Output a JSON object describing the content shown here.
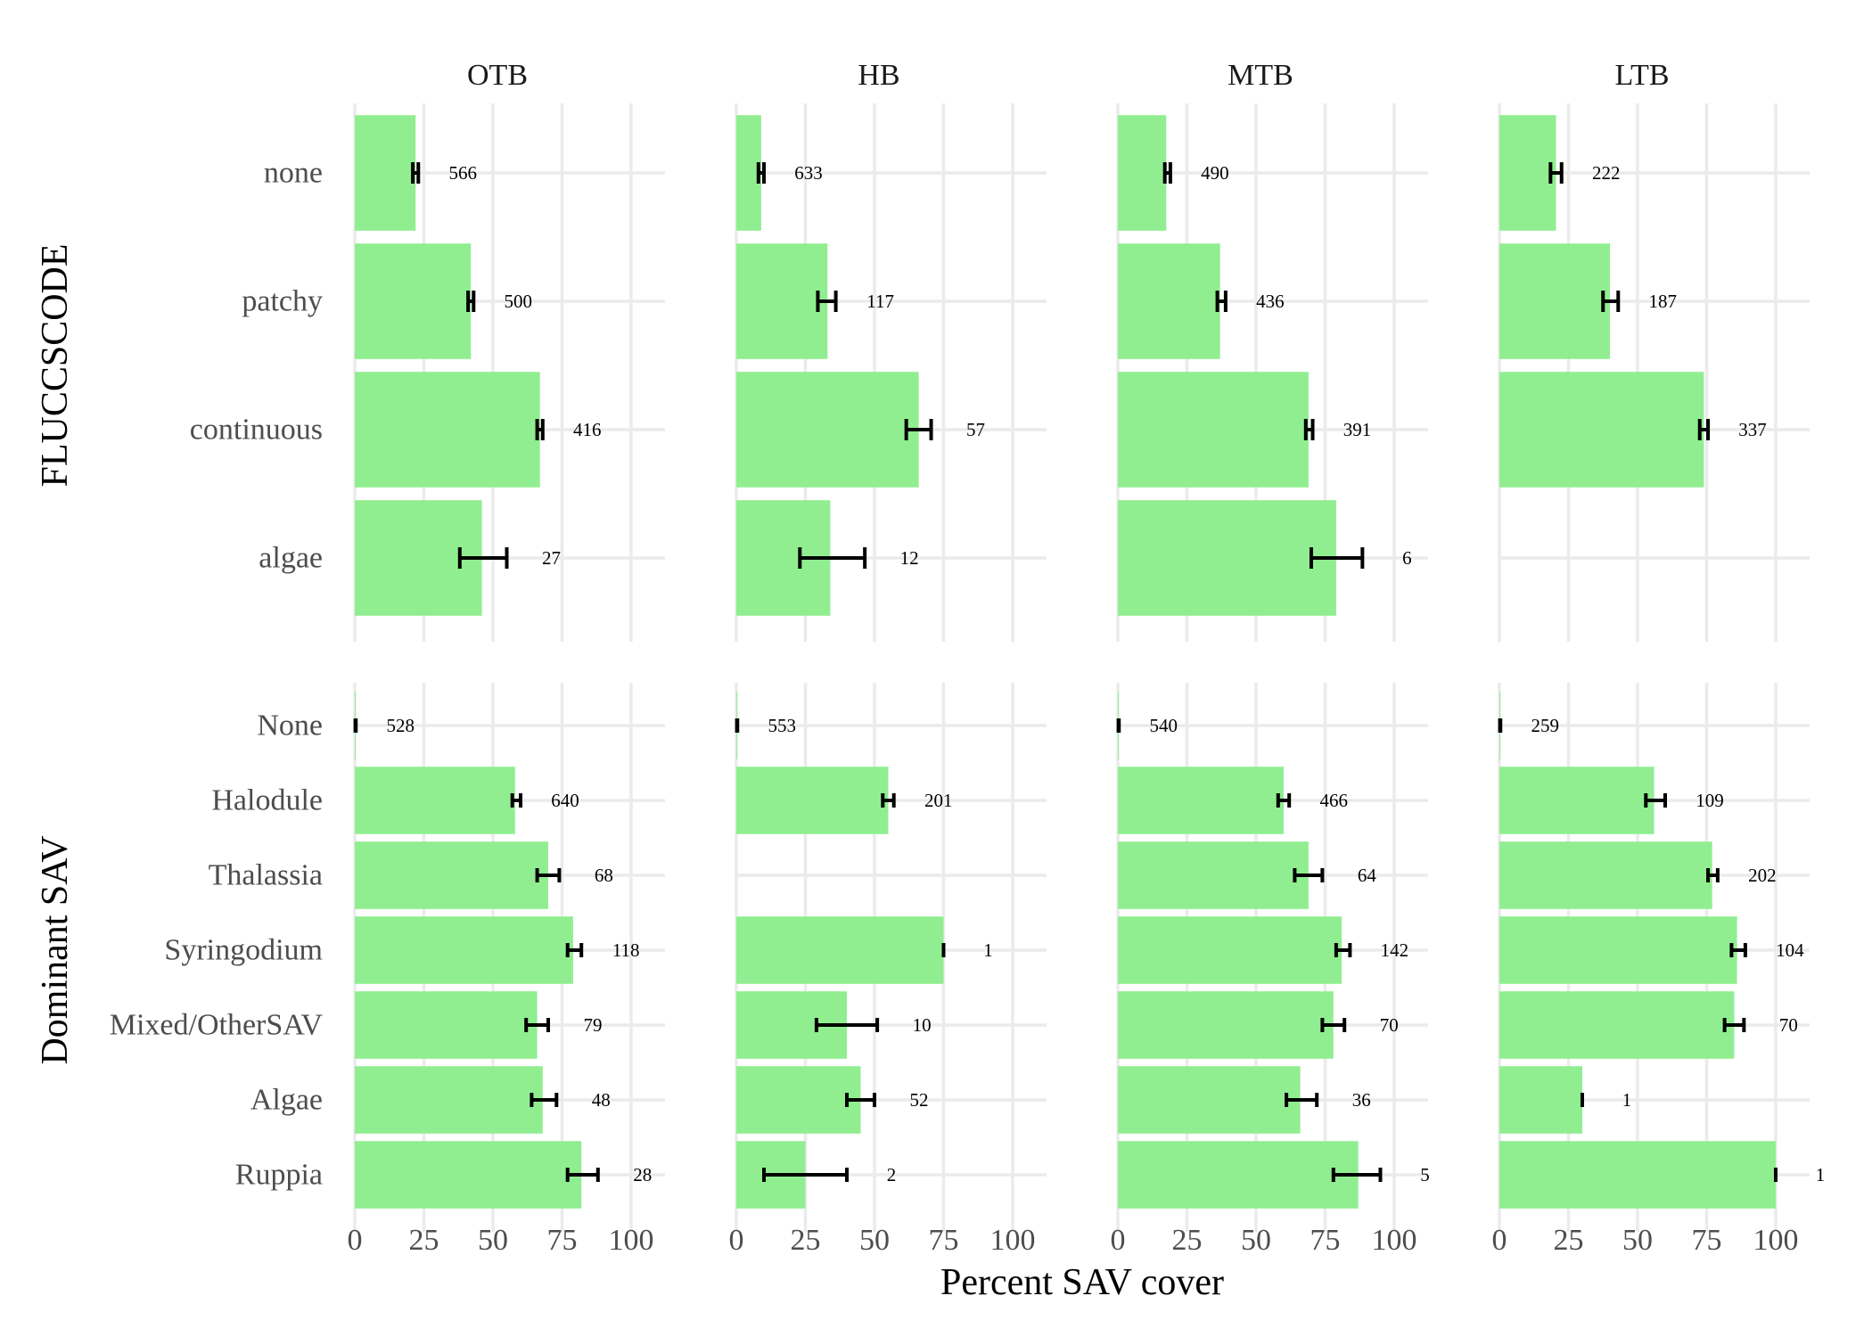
{
  "chart_data": {
    "type": "bar",
    "orientation": "horizontal",
    "facets": [
      "OTB",
      "HB",
      "MTB",
      "LTB"
    ],
    "xlabel": "Percent SAV cover",
    "xlim": [
      0,
      100
    ],
    "xticks": [
      "0",
      "25",
      "50",
      "75",
      "100"
    ],
    "bar_color": "#90ee90",
    "grid": true,
    "rows": [
      {
        "ylabel": "FLUCCSCODE",
        "categories": [
          "none",
          "patchy",
          "continuous",
          "algae"
        ],
        "panels": {
          "OTB": [
            {
              "category": "none",
              "mean": 22,
              "lo": 21,
              "hi": 23,
              "n": "566"
            },
            {
              "category": "patchy",
              "mean": 42,
              "lo": 41,
              "hi": 43,
              "n": "500"
            },
            {
              "category": "continuous",
              "mean": 67,
              "lo": 66,
              "hi": 68,
              "n": "416"
            },
            {
              "category": "algae",
              "mean": 46,
              "lo": 38,
              "hi": 55,
              "n": "27"
            }
          ],
          "HB": [
            {
              "category": "none",
              "mean": 9,
              "lo": 8,
              "hi": 10,
              "n": "633"
            },
            {
              "category": "patchy",
              "mean": 33,
              "lo": 29.5,
              "hi": 36,
              "n": "117"
            },
            {
              "category": "continuous",
              "mean": 66,
              "lo": 61.5,
              "hi": 70.5,
              "n": "57"
            },
            {
              "category": "algae",
              "mean": 34,
              "lo": 23,
              "hi": 46.5,
              "n": "12"
            }
          ],
          "MTB": [
            {
              "category": "none",
              "mean": 17.5,
              "lo": 17,
              "hi": 19,
              "n": "490"
            },
            {
              "category": "patchy",
              "mean": 37,
              "lo": 36,
              "hi": 39,
              "n": "436"
            },
            {
              "category": "continuous",
              "mean": 69,
              "lo": 68,
              "hi": 70.5,
              "n": "391"
            },
            {
              "category": "algae",
              "mean": 79,
              "lo": 70,
              "hi": 88.5,
              "n": "6"
            }
          ],
          "LTB": [
            {
              "category": "none",
              "mean": 20.5,
              "lo": 18.5,
              "hi": 22.5,
              "n": "222"
            },
            {
              "category": "patchy",
              "mean": 40,
              "lo": 37.5,
              "hi": 43,
              "n": "187"
            },
            {
              "category": "continuous",
              "mean": 74,
              "lo": 72.5,
              "hi": 75.5,
              "n": "337"
            }
          ]
        }
      },
      {
        "ylabel": "Dominant SAV",
        "categories": [
          "None",
          "Halodule",
          "Thalassia",
          "Syringodium",
          "Mixed/OtherSAV",
          "Algae",
          "Ruppia"
        ],
        "panels": {
          "OTB": [
            {
              "category": "None",
              "mean": 0.3,
              "lo": 0.2,
              "hi": 0.4,
              "n": "528"
            },
            {
              "category": "Halodule",
              "mean": 58,
              "lo": 57,
              "hi": 60,
              "n": "640"
            },
            {
              "category": "Thalassia",
              "mean": 70,
              "lo": 66,
              "hi": 74,
              "n": "68"
            },
            {
              "category": "Syringodium",
              "mean": 79,
              "lo": 77,
              "hi": 82,
              "n": "118"
            },
            {
              "category": "Mixed/OtherSAV",
              "mean": 66,
              "lo": 62,
              "hi": 70,
              "n": "79"
            },
            {
              "category": "Algae",
              "mean": 68,
              "lo": 64,
              "hi": 73,
              "n": "48"
            },
            {
              "category": "Ruppia",
              "mean": 82,
              "lo": 77,
              "hi": 88,
              "n": "28"
            }
          ],
          "HB": [
            {
              "category": "None",
              "mean": 0.3,
              "lo": 0.2,
              "hi": 0.4,
              "n": "553"
            },
            {
              "category": "Halodule",
              "mean": 55,
              "lo": 53,
              "hi": 57,
              "n": "201"
            },
            {
              "category": "Syringodium",
              "mean": 75,
              "lo": 75,
              "hi": 75,
              "n": "1"
            },
            {
              "category": "Mixed/OtherSAV",
              "mean": 40,
              "lo": 29,
              "hi": 51,
              "n": "10"
            },
            {
              "category": "Algae",
              "mean": 45,
              "lo": 40,
              "hi": 50,
              "n": "52"
            },
            {
              "category": "Ruppia",
              "mean": 25,
              "lo": 10,
              "hi": 40,
              "n": "2"
            }
          ],
          "MTB": [
            {
              "category": "None",
              "mean": 0.3,
              "lo": 0.2,
              "hi": 0.4,
              "n": "540"
            },
            {
              "category": "Halodule",
              "mean": 60,
              "lo": 58,
              "hi": 62,
              "n": "466"
            },
            {
              "category": "Thalassia",
              "mean": 69,
              "lo": 64,
              "hi": 74,
              "n": "64"
            },
            {
              "category": "Syringodium",
              "mean": 81,
              "lo": 79,
              "hi": 84,
              "n": "142"
            },
            {
              "category": "Mixed/OtherSAV",
              "mean": 78,
              "lo": 74,
              "hi": 82,
              "n": "70"
            },
            {
              "category": "Algae",
              "mean": 66,
              "lo": 61,
              "hi": 72,
              "n": "36"
            },
            {
              "category": "Ruppia",
              "mean": 87,
              "lo": 78,
              "hi": 95,
              "n": "5"
            }
          ],
          "LTB": [
            {
              "category": "None",
              "mean": 0.3,
              "lo": 0.2,
              "hi": 0.4,
              "n": "259"
            },
            {
              "category": "Halodule",
              "mean": 56,
              "lo": 53,
              "hi": 60,
              "n": "109"
            },
            {
              "category": "Thalassia",
              "mean": 77,
              "lo": 75.5,
              "hi": 79,
              "n": "202"
            },
            {
              "category": "Syringodium",
              "mean": 86,
              "lo": 84,
              "hi": 89,
              "n": "104"
            },
            {
              "category": "Mixed/OtherSAV",
              "mean": 85,
              "lo": 81.5,
              "hi": 88.5,
              "n": "70"
            },
            {
              "category": "Algae",
              "mean": 30,
              "lo": 30,
              "hi": 30,
              "n": "1"
            },
            {
              "category": "Ruppia",
              "mean": 100,
              "lo": 100,
              "hi": 100,
              "n": "1"
            }
          ]
        }
      }
    ]
  }
}
